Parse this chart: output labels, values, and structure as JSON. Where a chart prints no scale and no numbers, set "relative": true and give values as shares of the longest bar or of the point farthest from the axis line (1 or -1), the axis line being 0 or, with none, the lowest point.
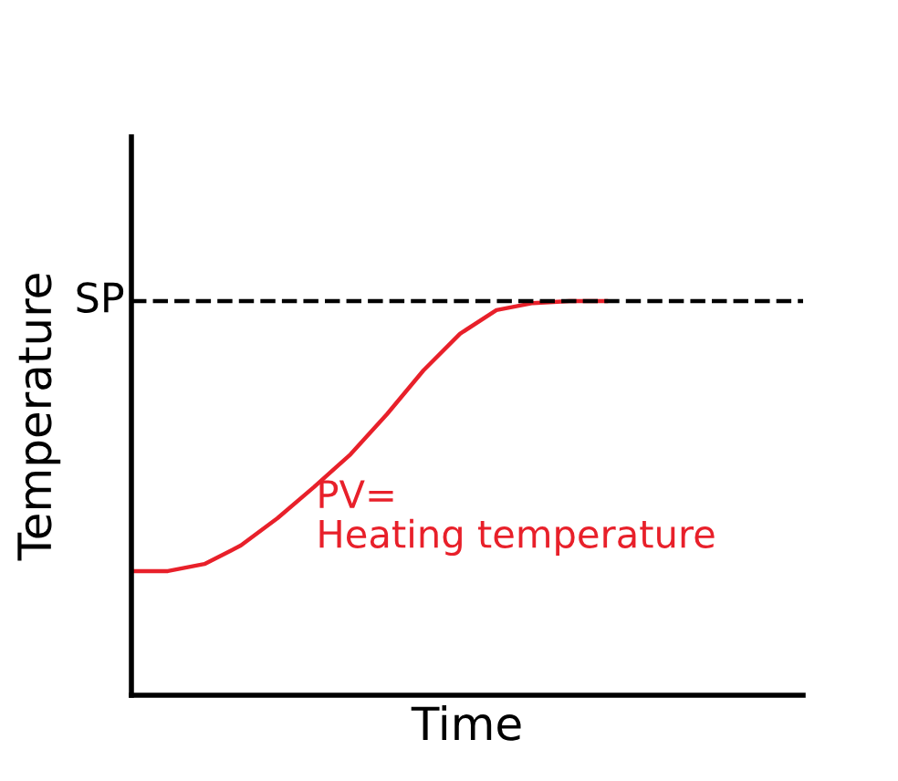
{
  "chart_data": {
    "type": "line",
    "relative": true,
    "xlabel": "Time",
    "ylabel": "Temperature",
    "categories": [
      null,
      null,
      null,
      null,
      null,
      null,
      null,
      null,
      null,
      null,
      null,
      null,
      null,
      null,
      null,
      null,
      null,
      null,
      null
    ],
    "series": [
      {
        "name": "PV=\nHeating temperature",
        "color": "#e8202a",
        "values": [
          0.315,
          0.315,
          0.333,
          0.38,
          0.449,
          0.528,
          0.611,
          0.713,
          0.824,
          0.917,
          0.977,
          0.995,
          1,
          1,
          null,
          null,
          null,
          null,
          null
        ]
      }
    ],
    "ref_lines": [
      {
        "axis": "y",
        "value": 1,
        "label": "SP",
        "color": "#000000",
        "line_style": "dashed"
      }
    ],
    "legend": false,
    "marker": "none",
    "line_style": "solid",
    "tick_labels": false
  }
}
